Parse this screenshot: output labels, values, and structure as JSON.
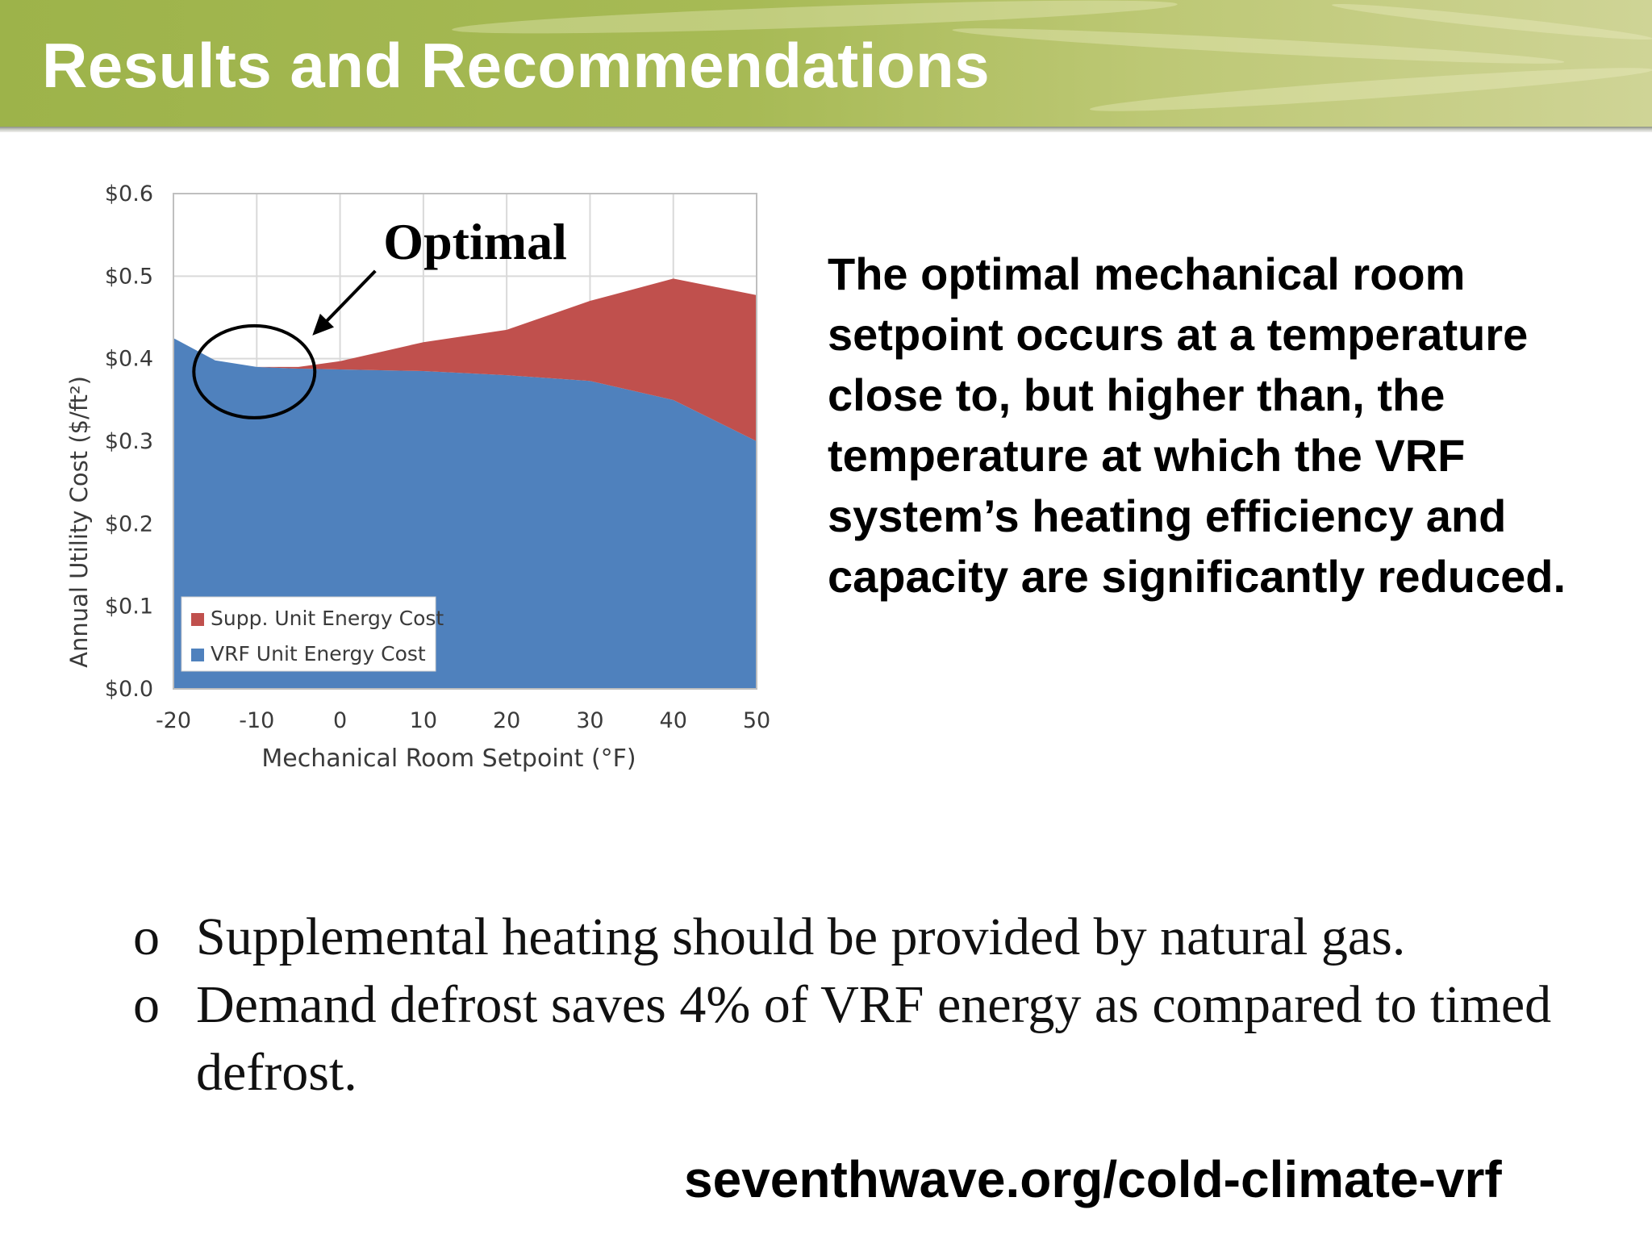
{
  "slide": {
    "title": "Results and Recommendations",
    "accent_color": "#a3b74f"
  },
  "chart_data": {
    "type": "area",
    "stacked": true,
    "x": [
      -20,
      -15,
      -10,
      -5,
      0,
      10,
      20,
      30,
      40,
      50
    ],
    "series": [
      {
        "name": "VRF Unit Energy Cost",
        "color": "#4f81bd",
        "values": [
          0.425,
          0.398,
          0.39,
          0.388,
          0.387,
          0.385,
          0.38,
          0.373,
          0.35,
          0.3
        ]
      },
      {
        "name": "Supp. Unit Energy Cost",
        "color": "#c0504d",
        "values": [
          0.0,
          0.0,
          0.0,
          0.002,
          0.01,
          0.035,
          0.055,
          0.097,
          0.147,
          0.177
        ]
      }
    ],
    "xlabel": "Mechanical Room Setpoint (°F)",
    "ylabel": "Annual Utility Cost ($/ft²)",
    "xlim": [
      -20,
      50
    ],
    "ylim": [
      0,
      0.6
    ],
    "x_ticks": [
      "-20",
      "-10",
      "0",
      "10",
      "20",
      "30",
      "40",
      "50"
    ],
    "y_ticks": [
      "$0.0",
      "$0.1",
      "$0.2",
      "$0.3",
      "$0.4",
      "$0.5",
      "$0.6"
    ],
    "grid": true,
    "legend_position": "bottom-left",
    "annotation": {
      "text": "Optimal",
      "x": -10,
      "y": 0.39
    }
  },
  "description": "The optimal mechanical room setpoint occurs at a temperature close to, but higher than, the temperature at which the VRF system’s heating efficiency and capacity are significantly reduced.",
  "bullets": [
    {
      "mark": "o",
      "text": "Supplemental heating should be provided by natural gas."
    },
    {
      "mark": "o",
      "text": "Demand defrost saves 4% of VRF energy as compared to timed defrost."
    }
  ],
  "footer": {
    "link": "seventhwave.org/cold-climate-vrf"
  }
}
